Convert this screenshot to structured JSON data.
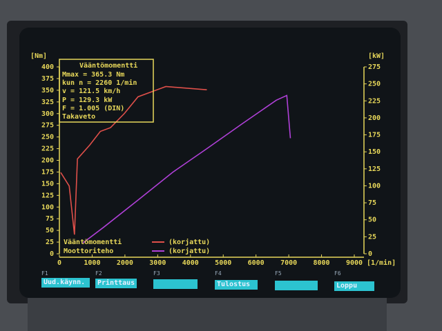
{
  "chart_data": {
    "type": "line",
    "left_axis_unit": "[Nm]",
    "right_axis_unit": "[kW]",
    "x_unit": "[1/min]",
    "xlim": [
      0,
      9000
    ],
    "ylim_left": [
      0,
      400
    ],
    "ylim_right": [
      0,
      275
    ],
    "x_ticks": [
      "0",
      "1000",
      "2000",
      "3000",
      "4000",
      "5000",
      "6000",
      "7000",
      "8000",
      "9000"
    ],
    "y_left_ticks": [
      "0",
      "25",
      "50",
      "75",
      "100",
      "125",
      "150",
      "175",
      "200",
      "225",
      "250",
      "275",
      "300",
      "325",
      "350",
      "375",
      "400"
    ],
    "y_right_ticks": [
      "0",
      "25",
      "50",
      "75",
      "100",
      "125",
      "150",
      "175",
      "200",
      "225",
      "250",
      "275"
    ],
    "grid": false,
    "legend_placement": "bottom-left",
    "series": [
      {
        "name": "Vääntömomentti",
        "label": "(korjattu)",
        "axis": "left",
        "color": "#e0504a",
        "x": [
          40,
          300,
          460,
          550,
          930,
          1250,
          1560,
          1980,
          2400,
          3250,
          4500
        ],
        "y": [
          174,
          145,
          41,
          203,
          233,
          262,
          270,
          300,
          336,
          358,
          351
        ]
      },
      {
        "name": "Moottoriteho",
        "label": "(korjattu)",
        "axis": "right",
        "color": "#b040d8",
        "x": [
          720,
          1350,
          2400,
          3460,
          4510,
          5570,
          6620,
          6940,
          7050
        ],
        "y": [
          16,
          39,
          79,
          120,
          155,
          191,
          226,
          233,
          170
        ]
      }
    ],
    "info_box": {
      "title": "Vääntömomentti",
      "lines": [
        "Mmax  =   365.3 Nm",
        "kun n =   2260 1/min",
        "    v =   121.5 km/h",
        "P     =   129.3 kW",
        "F     =   1.005 (DIN)",
        "Takaveto"
      ]
    }
  },
  "function_keys": [
    {
      "key": "F1",
      "label": "Uud.käynn."
    },
    {
      "key": "F2",
      "label": "Printtaus"
    },
    {
      "key": "F3",
      "label": ""
    },
    {
      "key": "F4",
      "label": "Tulostus"
    },
    {
      "key": "F5",
      "label": ""
    },
    {
      "key": "F6",
      "label": "Loppu"
    }
  ]
}
